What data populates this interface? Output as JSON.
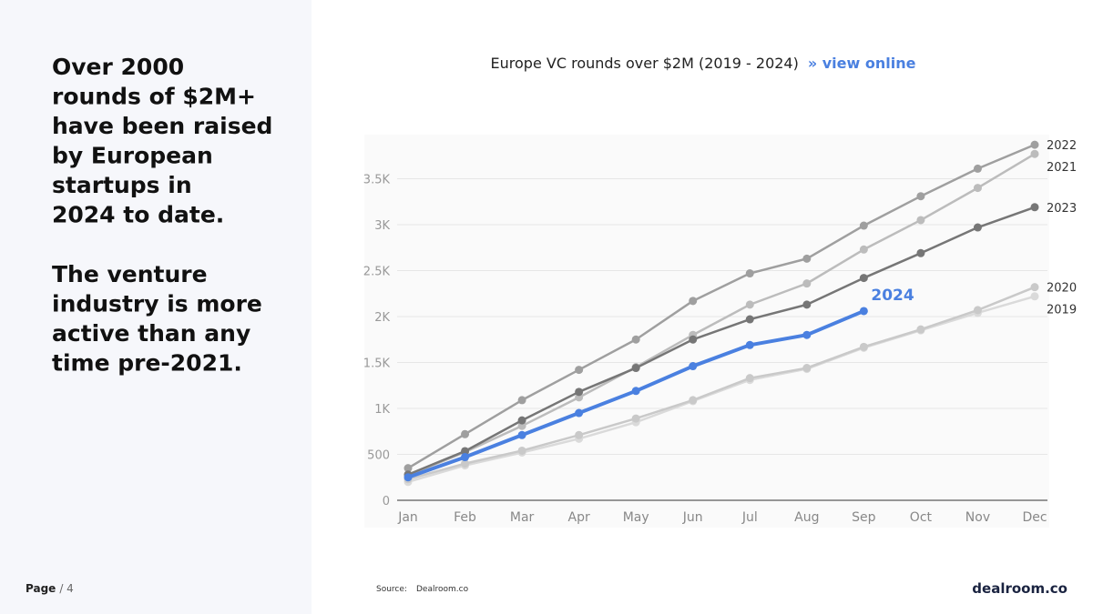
{
  "slide": {
    "headline": [
      [
        "Over 2000",
        "rounds of $2M+",
        "have been raised",
        "by European",
        "startups in",
        "2024 to date."
      ],
      [
        "The venture",
        "industry is more",
        "active than any",
        "time pre-2021."
      ]
    ],
    "page_label": "Page",
    "page_number": "/ 4",
    "source_label": "Source:",
    "source": "Dealroom.co",
    "logo": "dealroom.co"
  },
  "chart_data": {
    "type": "line",
    "title": "Europe VC rounds over $2M (2019 - 2024)",
    "link": "» view online",
    "categories": [
      "Jan",
      "Feb",
      "Mar",
      "Apr",
      "May",
      "Jun",
      "Jul",
      "Aug",
      "Sep",
      "Oct",
      "Nov",
      "Dec"
    ],
    "ylim": [
      0,
      4000
    ],
    "yticks": [
      0,
      500,
      {
        "value": 1000,
        "label": "1K"
      },
      {
        "value": 1500,
        "label": "1.5K"
      },
      {
        "value": 2000,
        "label": "2K"
      },
      {
        "value": 2500,
        "label": "2.5K"
      },
      {
        "value": 3000,
        "label": "3K"
      },
      {
        "value": 3500,
        "label": "3.5K"
      }
    ],
    "grid": true,
    "series": [
      {
        "name": "2019",
        "color": "#dadada",
        "values": [
          200,
          380,
          520,
          670,
          850,
          1080,
          1310,
          1430,
          1660,
          1850,
          2040,
          2220
        ]
      },
      {
        "name": "2020",
        "color": "#c9c9c9",
        "values": [
          230,
          400,
          540,
          710,
          890,
          1090,
          1330,
          1440,
          1670,
          1860,
          2070,
          2320
        ]
      },
      {
        "name": "2021",
        "color": "#bcbcbc",
        "values": [
          270,
          525,
          810,
          1120,
          1450,
          1800,
          2130,
          2360,
          2730,
          3050,
          3400,
          3770
        ]
      },
      {
        "name": "2022",
        "color": "#9f9f9f",
        "values": [
          350,
          720,
          1090,
          1420,
          1750,
          2170,
          2470,
          2630,
          2990,
          3310,
          3610,
          3870
        ]
      },
      {
        "name": "2023",
        "color": "#767676",
        "values": [
          280,
          535,
          870,
          1180,
          1440,
          1750,
          1970,
          2130,
          2420,
          2690,
          2970,
          3190
        ]
      },
      {
        "name": "2024",
        "color": "#4a80e0",
        "values": [
          250,
          470,
          710,
          950,
          1190,
          1460,
          1690,
          1800,
          2060,
          null,
          null,
          null
        ]
      }
    ]
  }
}
